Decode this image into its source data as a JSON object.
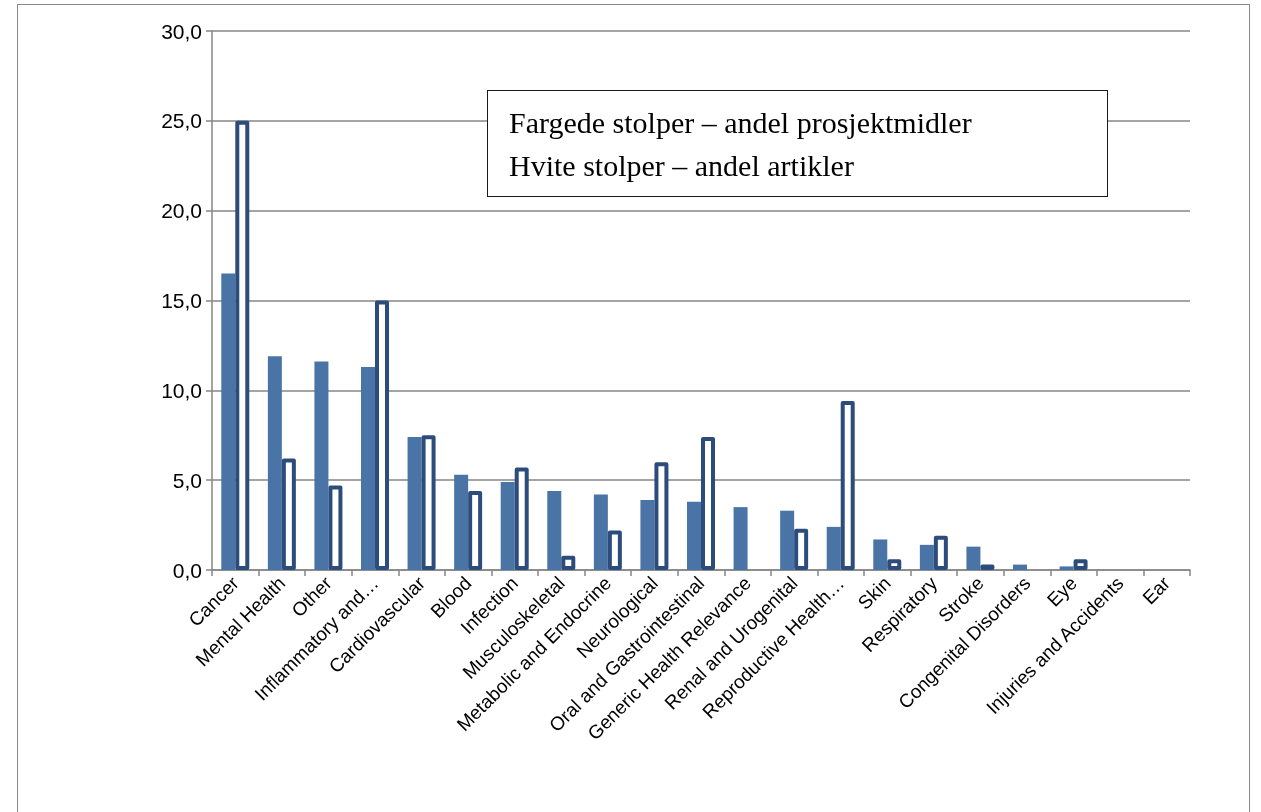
{
  "chart_data": {
    "type": "bar",
    "categories": [
      "Cancer",
      "Mental Health",
      "Other",
      "Inflammatory and…",
      "Cardiovascular",
      "Blood",
      "Infection",
      "Musculoskeletal",
      "Metabolic and Endocrine",
      "Neurological",
      "Oral and Gastrointestinal",
      "Generic Health Relevance",
      "Renal and Urogenital",
      "Reproductive Health…",
      "Skin",
      "Respiratory",
      "Stroke",
      "Congenital Disorders",
      "Eye",
      "Injuries and Accidents",
      "Ear"
    ],
    "series": [
      {
        "color": "#4a74a6",
        "values": [
          16.5,
          11.9,
          11.6,
          11.3,
          7.4,
          5.3,
          4.9,
          4.4,
          4.2,
          3.9,
          3.8,
          3.5,
          3.3,
          2.4,
          1.7,
          1.4,
          1.3,
          0.3,
          0.2,
          null,
          null
        ]
      },
      {
        "color": "#2c4c7c",
        "values": [
          25.0,
          6.2,
          4.7,
          15.0,
          7.5,
          4.4,
          5.7,
          0.8,
          2.2,
          6.0,
          7.4,
          null,
          2.3,
          9.4,
          0.6,
          1.9,
          0.3,
          null,
          0.6,
          null,
          null
        ]
      }
    ],
    "ylim": [
      0,
      30
    ],
    "yticks": [
      {
        "value": 0,
        "label": "0,0"
      },
      {
        "value": 5,
        "label": "5,0"
      },
      {
        "value": 10,
        "label": "10,0"
      },
      {
        "value": 15,
        "label": "15,0"
      },
      {
        "value": 20,
        "label": "20,0"
      },
      {
        "value": 25,
        "label": "25,0"
      },
      {
        "value": 30,
        "label": "30,0"
      }
    ],
    "grid": "y",
    "annotations": [
      "Fargede stolper – andel prosjektmidler",
      "Hvite stolper – andel artikler"
    ]
  }
}
